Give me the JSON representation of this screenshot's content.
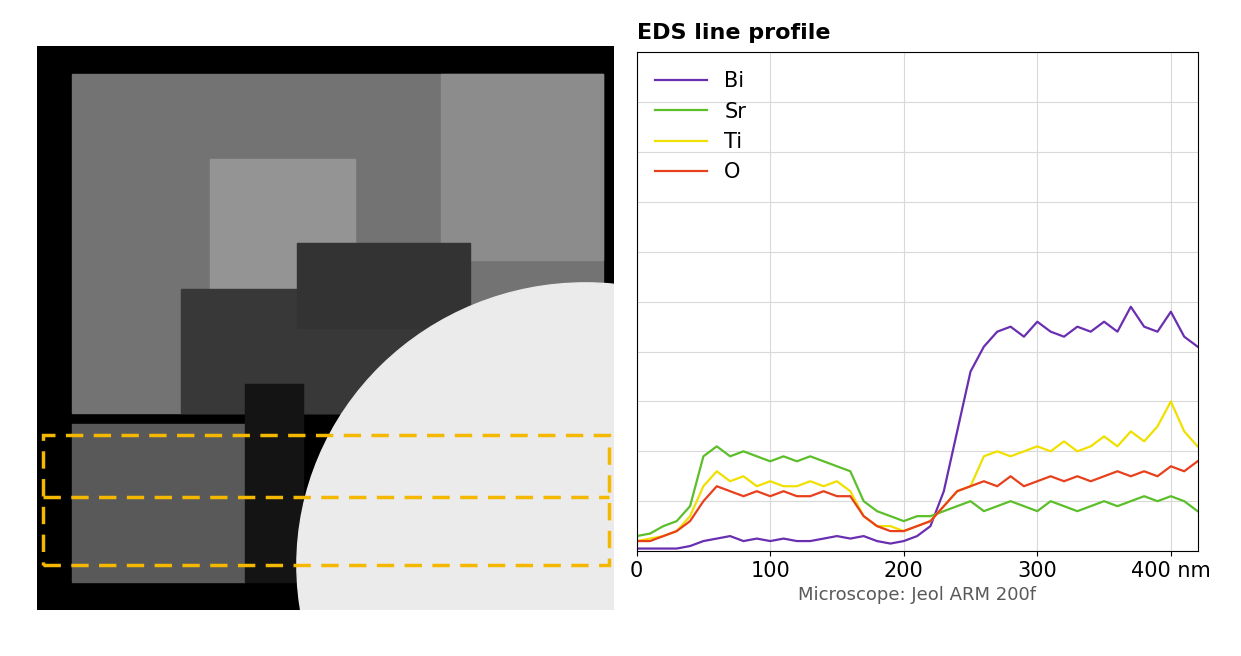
{
  "chart_data": {
    "type": "line",
    "title": "EDS line profile",
    "x_label": "Microscope: Jeol ARM 200f",
    "x": [
      0,
      10,
      20,
      30,
      40,
      50,
      60,
      70,
      80,
      90,
      100,
      110,
      120,
      130,
      140,
      150,
      160,
      170,
      180,
      190,
      200,
      210,
      220,
      230,
      240,
      250,
      260,
      270,
      280,
      290,
      300,
      310,
      320,
      330,
      340,
      350,
      360,
      370,
      380,
      390,
      400,
      410,
      420
    ],
    "series": [
      {
        "name": "Bi",
        "color": "#6a2fb0",
        "values": [
          0.05,
          0.05,
          0.05,
          0.05,
          0.1,
          0.2,
          0.25,
          0.3,
          0.2,
          0.25,
          0.2,
          0.25,
          0.2,
          0.2,
          0.25,
          0.3,
          0.25,
          0.3,
          0.2,
          0.15,
          0.2,
          0.3,
          0.5,
          1.2,
          2.4,
          3.6,
          4.1,
          4.4,
          4.5,
          4.3,
          4.6,
          4.4,
          4.3,
          4.5,
          4.4,
          4.6,
          4.4,
          4.9,
          4.5,
          4.4,
          4.8,
          4.3,
          4.1
        ]
      },
      {
        "name": "Sr",
        "color": "#5cbf2a",
        "values": [
          0.3,
          0.35,
          0.5,
          0.6,
          0.9,
          1.9,
          2.1,
          1.9,
          2.0,
          1.9,
          1.8,
          1.9,
          1.8,
          1.9,
          1.8,
          1.7,
          1.6,
          1.0,
          0.8,
          0.7,
          0.6,
          0.7,
          0.7,
          0.8,
          0.9,
          1.0,
          0.8,
          0.9,
          1.0,
          0.9,
          0.8,
          1.0,
          0.9,
          0.8,
          0.9,
          1.0,
          0.9,
          1.0,
          1.1,
          1.0,
          1.1,
          1.0,
          0.8
        ]
      },
      {
        "name": "Ti",
        "color": "#f0e000",
        "values": [
          0.2,
          0.25,
          0.3,
          0.4,
          0.7,
          1.3,
          1.6,
          1.4,
          1.5,
          1.3,
          1.4,
          1.3,
          1.3,
          1.4,
          1.3,
          1.4,
          1.2,
          0.7,
          0.5,
          0.5,
          0.4,
          0.5,
          0.6,
          0.9,
          1.2,
          1.3,
          1.9,
          2.0,
          1.9,
          2.0,
          2.1,
          2.0,
          2.2,
          2.0,
          2.1,
          2.3,
          2.1,
          2.4,
          2.2,
          2.5,
          3.0,
          2.4,
          2.1
        ]
      },
      {
        "name": "O",
        "color": "#e8401c",
        "values": [
          0.2,
          0.2,
          0.3,
          0.4,
          0.6,
          1.0,
          1.3,
          1.2,
          1.1,
          1.2,
          1.1,
          1.2,
          1.1,
          1.1,
          1.2,
          1.1,
          1.1,
          0.7,
          0.5,
          0.4,
          0.4,
          0.5,
          0.6,
          0.9,
          1.2,
          1.3,
          1.4,
          1.3,
          1.5,
          1.3,
          1.4,
          1.5,
          1.4,
          1.5,
          1.4,
          1.5,
          1.6,
          1.5,
          1.6,
          1.5,
          1.7,
          1.6,
          1.8
        ]
      }
    ],
    "xlim": [
      0,
      420
    ],
    "xticks": [
      0,
      100,
      200,
      300,
      {
        "value": 400,
        "label": "400 nm"
      }
    ],
    "ylim": [
      0,
      10
    ],
    "yticks": [
      0,
      1,
      2,
      3,
      4,
      5,
      6,
      7,
      8,
      9,
      10
    ],
    "grid": true,
    "legend": "upper left",
    "tick_labels": "x"
  }
}
